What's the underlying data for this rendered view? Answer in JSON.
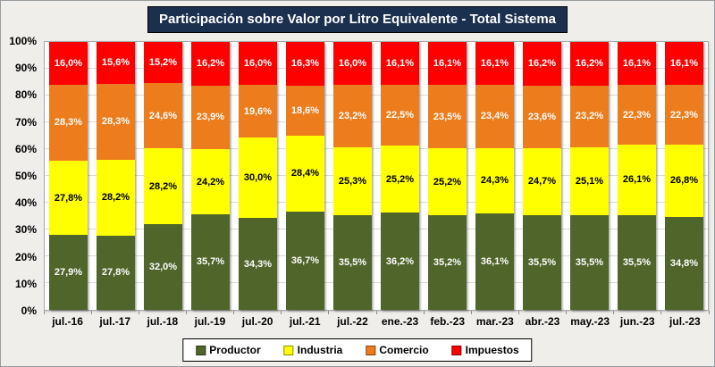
{
  "title": "Participación sobre Valor por Litro Equivalente - Total Sistema",
  "colors": {
    "background": "#F0EEEB",
    "title_bg": "#1B2F4E",
    "title_text": "#FFFFFF",
    "plot_bg": "#FFFFFF",
    "gridline": "#D9D9D9",
    "axis_border": "#A9A9A9",
    "legend_bg": "#FFFFFF",
    "legend_border": "#000000"
  },
  "y_axis": {
    "ticks": [
      "100%",
      "90%",
      "80%",
      "70%",
      "60%",
      "50%",
      "40%",
      "30%",
      "20%",
      "10%",
      "0%"
    ]
  },
  "chart_data": {
    "type": "bar",
    "stacked": true,
    "percent_stacked": true,
    "title": "Participación sobre Valor por Litro Equivalente - Total Sistema",
    "xlabel": "",
    "ylabel": "",
    "ylim": [
      0,
      100
    ],
    "y_tick_step": 10,
    "grid": "horizontal",
    "legend_position": "bottom",
    "value_label_decimal_separator": ",",
    "categories": [
      "jul.-16",
      "jul.-17",
      "jul.-18",
      "jul.-19",
      "jul.-20",
      "jul.-21",
      "jul.-22",
      "ene.-23",
      "feb.-23",
      "mar.-23",
      "abr.-23",
      "may.-23",
      "jun.-23",
      "jul.-23"
    ],
    "series": [
      {
        "name": "Productor",
        "color": "#4F652A",
        "label_color": "#FFFFFF",
        "values": [
          27.9,
          27.8,
          32.0,
          35.7,
          34.3,
          36.7,
          35.5,
          36.2,
          35.2,
          36.1,
          35.5,
          35.5,
          35.5,
          34.8
        ],
        "labels": [
          "27,9%",
          "27,8%",
          "32,0%",
          "35,7%",
          "34,3%",
          "36,7%",
          "35,5%",
          "36,2%",
          "35,2%",
          "36,1%",
          "35,5%",
          "35,5%",
          "35,5%",
          "34,8%"
        ]
      },
      {
        "name": "Industria",
        "color": "#FFFF00",
        "label_color": "#000000",
        "values": [
          27.8,
          28.2,
          28.2,
          24.2,
          30.0,
          28.4,
          25.3,
          25.2,
          25.2,
          24.3,
          24.7,
          25.1,
          26.1,
          26.8
        ],
        "labels": [
          "27,8%",
          "28,2%",
          "28,2%",
          "24,2%",
          "30,0%",
          "28,4%",
          "25,3%",
          "25,2%",
          "25,2%",
          "24,3%",
          "24,7%",
          "25,1%",
          "26,1%",
          "26,8%"
        ]
      },
      {
        "name": "Comercio",
        "color": "#ED7D1C",
        "label_color": "#FFFFFF",
        "values": [
          28.3,
          28.3,
          24.6,
          23.9,
          19.6,
          18.6,
          23.2,
          22.5,
          23.5,
          23.4,
          23.6,
          23.2,
          22.3,
          22.3
        ],
        "labels": [
          "28,3%",
          "28,3%",
          "24,6%",
          "23,9%",
          "19,6%",
          "18,6%",
          "23,2%",
          "22,5%",
          "23,5%",
          "23,4%",
          "23,6%",
          "23,2%",
          "22,3%",
          "22,3%"
        ]
      },
      {
        "name": "Impuestos",
        "color": "#FE0000",
        "label_color": "#FFFFFF",
        "values": [
          16.0,
          15.6,
          15.2,
          16.2,
          16.0,
          16.3,
          16.0,
          16.1,
          16.1,
          16.1,
          16.2,
          16.2,
          16.1,
          16.1
        ],
        "labels": [
          "16,0%",
          "15,6%",
          "15,2%",
          "16,2%",
          "16,0%",
          "16,3%",
          "16,0%",
          "16,1%",
          "16,1%",
          "16,1%",
          "16,2%",
          "16,2%",
          "16,1%",
          "16,1%"
        ]
      }
    ]
  }
}
